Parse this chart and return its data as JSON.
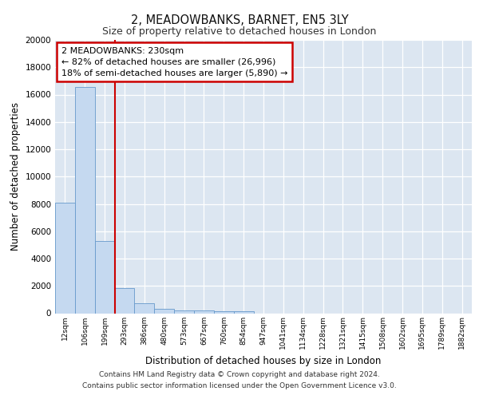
{
  "title": "2, MEADOWBANKS, BARNET, EN5 3LY",
  "subtitle": "Size of property relative to detached houses in London",
  "xlabel": "Distribution of detached houses by size in London",
  "ylabel": "Number of detached properties",
  "categories": [
    "12sqm",
    "106sqm",
    "199sqm",
    "293sqm",
    "386sqm",
    "480sqm",
    "573sqm",
    "667sqm",
    "760sqm",
    "854sqm",
    "947sqm",
    "1041sqm",
    "1134sqm",
    "1228sqm",
    "1321sqm",
    "1415sqm",
    "1508sqm",
    "1602sqm",
    "1695sqm",
    "1789sqm",
    "1882sqm"
  ],
  "bar_heights": [
    8100,
    16550,
    5300,
    1850,
    750,
    320,
    230,
    200,
    170,
    130,
    0,
    0,
    0,
    0,
    0,
    0,
    0,
    0,
    0,
    0,
    0
  ],
  "bar_color": "#c5d9f0",
  "bar_edge_color": "#6699cc",
  "bg_color": "#dce6f1",
  "grid_color": "#ffffff",
  "fig_bg_color": "#ffffff",
  "vline_x": 2.5,
  "vline_color": "#cc0000",
  "annotation_text": "2 MEADOWBANKS: 230sqm\n← 82% of detached houses are smaller (26,996)\n18% of semi-detached houses are larger (5,890) →",
  "annotation_box_color": "#ffffff",
  "annotation_box_edge": "#cc0000",
  "footer_line1": "Contains HM Land Registry data © Crown copyright and database right 2024.",
  "footer_line2": "Contains public sector information licensed under the Open Government Licence v3.0.",
  "ylim": [
    0,
    20000
  ],
  "yticks": [
    0,
    2000,
    4000,
    6000,
    8000,
    10000,
    12000,
    14000,
    16000,
    18000,
    20000
  ]
}
